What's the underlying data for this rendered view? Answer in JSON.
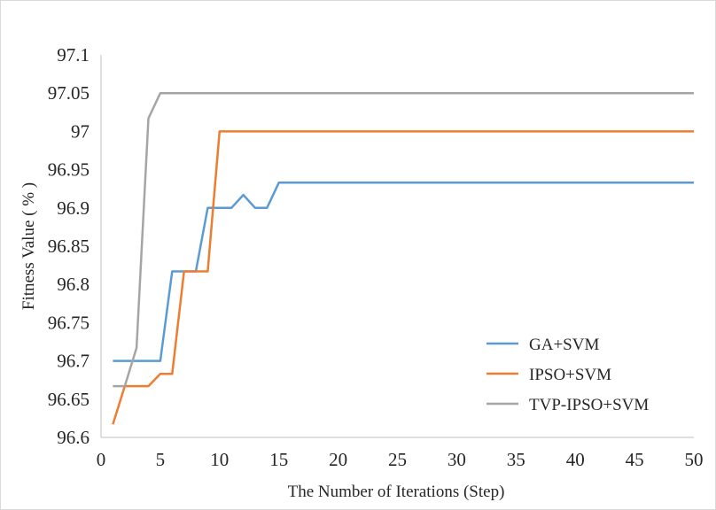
{
  "chart_data": {
    "type": "line",
    "xlabel": "The  Number of Iterations (Step)",
    "ylabel": "Fitness  Value ( % )",
    "xlim": [
      0,
      50
    ],
    "ylim": [
      96.6,
      97.1
    ],
    "x_ticks": [
      "0",
      "5",
      "10",
      "15",
      "20",
      "25",
      "30",
      "35",
      "40",
      "45",
      "50"
    ],
    "y_ticks": [
      "96.6",
      "96.65",
      "96.7",
      "96.75",
      "96.8",
      "96.85",
      "96.9",
      "96.95",
      "97",
      "97.05",
      "97.1"
    ],
    "grid": false,
    "legend_position": "bottom-right",
    "series": [
      {
        "name": "GA+SVM",
        "color": "#5b9bd5",
        "x": [
          1,
          2,
          3,
          4,
          5,
          6,
          7,
          8,
          9,
          10,
          11,
          12,
          13,
          14,
          15,
          50
        ],
        "y": [
          96.7,
          96.7,
          96.7,
          96.7,
          96.7,
          96.817,
          96.817,
          96.817,
          96.9,
          96.9,
          96.9,
          96.917,
          96.9,
          96.9,
          96.933,
          96.933
        ]
      },
      {
        "name": "IPSO+SVM",
        "color": "#ed7d31",
        "x": [
          1,
          2,
          3,
          4,
          5,
          6,
          7,
          8,
          9,
          10,
          50
        ],
        "y": [
          96.617,
          96.667,
          96.667,
          96.667,
          96.683,
          96.683,
          96.817,
          96.817,
          96.817,
          97.0,
          97.0
        ]
      },
      {
        "name": "TVP-IPSO+SVM",
        "color": "#a5a5a5",
        "x": [
          1,
          2,
          3,
          4,
          5,
          50
        ],
        "y": [
          96.667,
          96.667,
          96.717,
          97.017,
          97.05,
          97.05
        ]
      }
    ]
  }
}
